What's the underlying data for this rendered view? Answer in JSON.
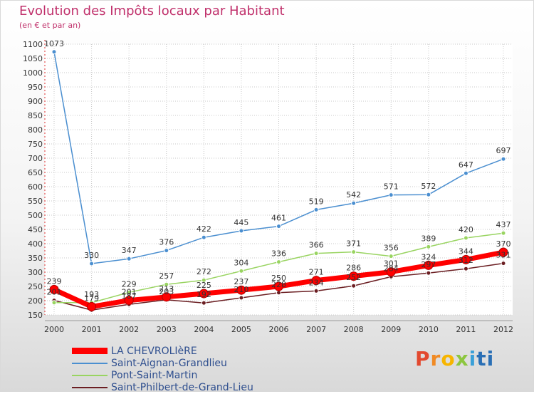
{
  "title": "Evolution des Impôts locaux par Habitant",
  "subtitle": "(en € et par an)",
  "brand": [
    "P",
    "r",
    "o",
    "x",
    "i",
    "ti"
  ],
  "chart_data": {
    "type": "line",
    "x": [
      "2000",
      "2001",
      "2002",
      "2003",
      "2004",
      "2005",
      "2006",
      "2007",
      "2008",
      "2009",
      "2010",
      "2011",
      "2012"
    ],
    "ylim": [
      150,
      1100
    ],
    "yticks": [
      150,
      200,
      250,
      300,
      350,
      400,
      450,
      500,
      550,
      600,
      650,
      700,
      750,
      800,
      850,
      900,
      950,
      1000,
      1050,
      1100
    ],
    "ytick_labels": [
      "150",
      "200",
      "250",
      "300",
      "350",
      "400",
      "450",
      "500",
      "550",
      "600",
      "650",
      "700",
      "750",
      "800",
      "850",
      "900",
      "950",
      "1000",
      "1050",
      "1100"
    ],
    "series": [
      {
        "name": "LA CHEVROLIèRE",
        "color": "#ff0000",
        "values": [
          239,
          179,
          201,
          213,
          225,
          237,
          250,
          271,
          286,
          301,
          324,
          344,
          370
        ],
        "labels": [
          "239",
          "179",
          "201",
          "213",
          "225",
          "237",
          "250",
          "271",
          "286",
          "301",
          "324",
          "344",
          "370"
        ]
      },
      {
        "name": "Saint-Aignan-Grandlieu",
        "color": "#4b8fd0",
        "values": [
          1073,
          330,
          347,
          376,
          422,
          445,
          461,
          519,
          542,
          571,
          572,
          647,
          697
        ],
        "labels": [
          "1073",
          "330",
          "347",
          "376",
          "422",
          "445",
          "461",
          "519",
          "542",
          "571",
          "572",
          "647",
          "697"
        ]
      },
      {
        "name": "Pont-Saint-Martin",
        "color": "#99d461",
        "values": [
          193,
          193,
          229,
          257,
          272,
          304,
          336,
          366,
          371,
          356,
          389,
          420,
          437
        ],
        "labels": [
          "",
          "193",
          "229",
          "257",
          "272",
          "304",
          "336",
          "366",
          "371",
          "356",
          "389",
          "420",
          "437"
        ]
      },
      {
        "name": "Saint-Philbert-de-Grand-Lieu",
        "color": "#6b1e22",
        "values": [
          201,
          167,
          187,
          203,
          192,
          210,
          228,
          234,
          252,
          284,
          297,
          312,
          331
        ],
        "labels": [
          "201",
          "",
          "187",
          "203",
          "192",
          "210",
          "228",
          "234",
          "252",
          "284",
          "297",
          "312",
          "331"
        ]
      }
    ]
  }
}
